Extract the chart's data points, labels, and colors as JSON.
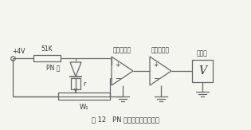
{
  "title": "图 12   PN 结热电阻实验电路图",
  "label_diff_amp": "差动放大器",
  "label_volt_amp": "电压放大器",
  "label_voltmeter": "电压表",
  "label_voltage": "+4V",
  "label_resistor": "51K",
  "label_pn": "PN 结",
  "label_r": "r",
  "label_w1": "W₁",
  "label_v": "V",
  "bg_color": "#f5f5f0",
  "line_color": "#666666",
  "text_color": "#333333",
  "fig_width": 3.15,
  "fig_height": 1.63,
  "dpi": 100
}
